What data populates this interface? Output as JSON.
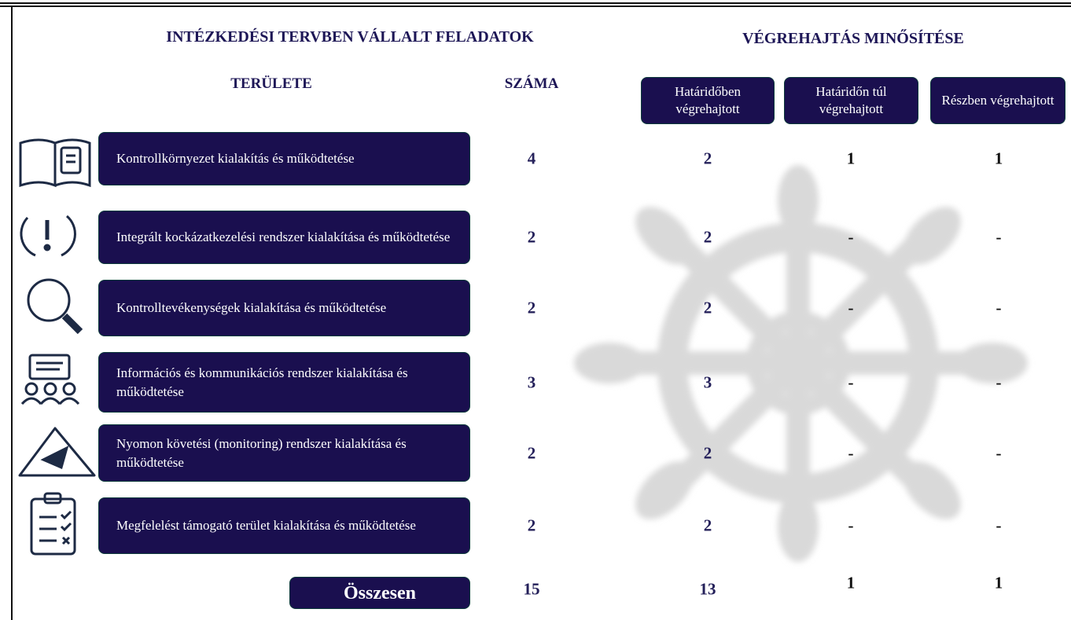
{
  "header": {
    "title_left": "INTÉZKEDÉSI TERVBEN VÁLLALT FELADATOK",
    "title_right": "VÉGREHAJTÁS MINŐSÍTÉSE",
    "col_area": "TERÜLETE",
    "col_count": "SZÁMA",
    "status_columns": [
      "Határidőben végrehajtott",
      "Határidőn túl végrehajtott",
      "Részben végrehajtott"
    ]
  },
  "rows": [
    {
      "label": "Kontrollkörnyezet kialakítás és működtetése",
      "count": 4,
      "on_time": 2,
      "late": 1,
      "partial": 1
    },
    {
      "label": "Integrált kockázatkezelési rendszer kialakítása és működtetése",
      "count": 2,
      "on_time": 2,
      "late": "-",
      "partial": "-"
    },
    {
      "label": "Kontrolltevékenységek kialakítása és működtetése",
      "count": 2,
      "on_time": 2,
      "late": "-",
      "partial": "-"
    },
    {
      "label": "Információs és kommunikációs rendszer kialakítása és működtetése",
      "count": 3,
      "on_time": 3,
      "late": "-",
      "partial": "-"
    },
    {
      "label": "Nyomon követési (monitoring) rendszer kialakítása és működtetése",
      "count": 2,
      "on_time": 2,
      "late": "-",
      "partial": "-"
    },
    {
      "label": "Megfelelést támogató terület kialakítása és működtetése",
      "count": 2,
      "on_time": 2,
      "late": "-",
      "partial": "-"
    }
  ],
  "total": {
    "label": "Összesen",
    "count": 15,
    "on_time": 13,
    "late": 1,
    "partial": 1
  }
}
